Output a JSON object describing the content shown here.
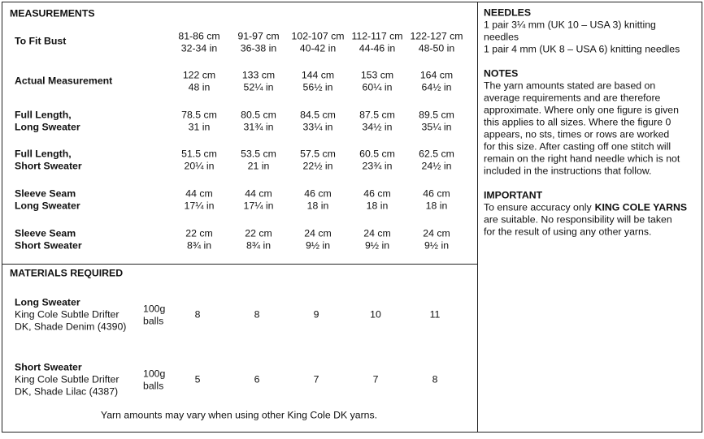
{
  "measurements": {
    "title": "MEASUREMENTS",
    "rows": [
      {
        "label": [
          "To Fit Bust"
        ],
        "values": [
          [
            "81-86 cm",
            "32-34 in"
          ],
          [
            "91-97 cm",
            "36-38 in"
          ],
          [
            "102-107 cm",
            "40-42 in"
          ],
          [
            "112-117 cm",
            "44-46 in"
          ],
          [
            "122-127 cm",
            "48-50 in"
          ]
        ]
      },
      {
        "label": [
          "Actual Measurement"
        ],
        "values": [
          [
            "122 cm",
            "48 in"
          ],
          [
            "133 cm",
            "52¼ in"
          ],
          [
            "144 cm",
            "56½ in"
          ],
          [
            "153 cm",
            "60¼ in"
          ],
          [
            "164 cm",
            "64½ in"
          ]
        ]
      },
      {
        "label": [
          "Full Length,",
          "Long Sweater"
        ],
        "values": [
          [
            "78.5 cm",
            "31 in"
          ],
          [
            "80.5 cm",
            "31¾ in"
          ],
          [
            "84.5 cm",
            "33¼ in"
          ],
          [
            "87.5 cm",
            "34½ in"
          ],
          [
            "89.5 cm",
            "35¼ in"
          ]
        ]
      },
      {
        "label": [
          "Full Length,",
          "Short Sweater"
        ],
        "values": [
          [
            "51.5 cm",
            "20¼ in"
          ],
          [
            "53.5 cm",
            "21 in"
          ],
          [
            "57.5 cm",
            "22½ in"
          ],
          [
            "60.5 cm",
            "23¾ in"
          ],
          [
            "62.5 cm",
            "24½ in"
          ]
        ]
      },
      {
        "label": [
          "Sleeve Seam",
          "Long Sweater"
        ],
        "values": [
          [
            "44 cm",
            "17¼ in"
          ],
          [
            "44 cm",
            "17¼ in"
          ],
          [
            "46 cm",
            "18 in"
          ],
          [
            "46 cm",
            "18 in"
          ],
          [
            "46 cm",
            "18 in"
          ]
        ]
      },
      {
        "label": [
          "Sleeve Seam",
          "Short Sweater"
        ],
        "values": [
          [
            "22 cm",
            "8¾ in"
          ],
          [
            "22 cm",
            "8¾ in"
          ],
          [
            "24 cm",
            "9½ in"
          ],
          [
            "24 cm",
            "9½ in"
          ],
          [
            "24 cm",
            "9½ in"
          ]
        ]
      }
    ]
  },
  "materials": {
    "title": "MATERIALS REQUIRED",
    "items": [
      {
        "name": "Long Sweater",
        "yarn": [
          "King Cole Subtle Drifter",
          "DK, Shade Denim (4390)"
        ],
        "unit": [
          "100g",
          "balls"
        ],
        "values": [
          8,
          8,
          9,
          10,
          11
        ]
      },
      {
        "name": "Short Sweater",
        "yarn": [
          "King Cole Subtle Drifter",
          "DK, Shade Lilac (4387)"
        ],
        "unit": [
          "100g",
          "balls"
        ],
        "values": [
          5,
          6,
          7,
          7,
          8
        ]
      }
    ],
    "footnote": "Yarn amounts may vary when using other King Cole DK yarns."
  },
  "needles": {
    "title": "NEEDLES",
    "lines": [
      "1 pair 3¼ mm (UK 10 – USA 3) knitting",
      "needles",
      "1 pair 4 mm (UK 8 – USA 6) knitting needles"
    ]
  },
  "notes": {
    "title": "NOTES",
    "lines": [
      "The yarn amounts stated are based on",
      "average requirements and are therefore",
      "approximate. Where only one figure is given",
      "this applies to all sizes. Where the figure 0",
      "appears, no sts, times or rows are worked",
      "for this size. After casting off one stitch will",
      "remain on the right hand needle which is not",
      "included in the instructions that follow."
    ]
  },
  "important": {
    "title": "IMPORTANT",
    "lead": "To ensure accuracy only",
    "emphasis": "KING COLE YARNS",
    "lines": [
      "are suitable. No responsibility will be taken",
      "for the result of using any other yarns."
    ]
  }
}
